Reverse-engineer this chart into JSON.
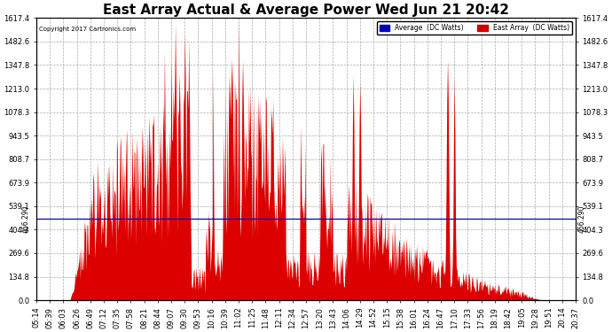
{
  "title": "East Array Actual & Average Power Wed Jun 21 20:42",
  "copyright": "Copyright 2017 Cartronics.com",
  "legend_labels": [
    "Average  (DC Watts)",
    "East Array  (DC Watts)"
  ],
  "legend_colors": [
    "#0000bb",
    "#cc0000"
  ],
  "ymin": 0.0,
  "ymax": 1617.4,
  "yticks": [
    0.0,
    134.8,
    269.6,
    404.3,
    539.1,
    673.9,
    808.7,
    943.5,
    1078.3,
    1213.0,
    1347.8,
    1482.6,
    1617.4
  ],
  "hline_value": 466.29,
  "hline_label": "466.290",
  "background_color": "#ffffff",
  "plot_bg_color": "#ffffff",
  "grid_color": "#aaaaaa",
  "fill_color": "#dd0000",
  "avg_line_color": "#0000bb",
  "x_labels": [
    "05:14",
    "05:39",
    "06:03",
    "06:26",
    "06:49",
    "07:12",
    "07:35",
    "07:58",
    "08:21",
    "08:44",
    "09:07",
    "09:30",
    "09:53",
    "10:16",
    "10:39",
    "11:02",
    "11:25",
    "11:48",
    "12:11",
    "12:34",
    "12:57",
    "13:20",
    "13:43",
    "14:06",
    "14:29",
    "14:52",
    "15:15",
    "15:38",
    "16:01",
    "16:24",
    "16:47",
    "17:10",
    "17:33",
    "17:56",
    "18:19",
    "18:42",
    "19:05",
    "19:28",
    "19:51",
    "20:14",
    "20:37"
  ],
  "title_fontsize": 11,
  "tick_fontsize": 6.0
}
